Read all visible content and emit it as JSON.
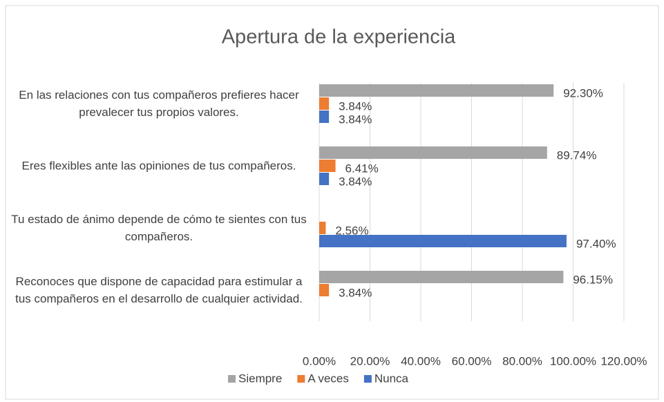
{
  "chart_data": {
    "type": "bar",
    "orientation": "horizontal",
    "title": "Apertura  de la experiencia",
    "categories": [
      "En las relaciones con tus compañeros prefieres hacer prevalecer tus propios valores.",
      "Eres flexibles ante las opiniones de tus compañeros.",
      "Tu estado de ánimo depende de cómo te sientes con tus compañeros.",
      "Reconoces que dispone de capacidad para estimular a tus compañeros en el desarrollo de cualquier actividad."
    ],
    "series": [
      {
        "name": "Siempre",
        "color": "#a5a5a5",
        "values": [
          92.3,
          89.74,
          null,
          96.15
        ],
        "value_labels": [
          "92.30%",
          "89.74%",
          null,
          "96.15%"
        ]
      },
      {
        "name": "A veces",
        "color": "#ed7d31",
        "values": [
          3.84,
          6.41,
          2.56,
          3.84
        ],
        "value_labels": [
          "3.84%",
          "6.41%",
          "2.56%",
          "3.84%"
        ]
      },
      {
        "name": "Nunca",
        "color": "#4472c4",
        "values": [
          3.84,
          3.84,
          97.4,
          null
        ],
        "value_labels": [
          "3.84%",
          "3.84%",
          "97.40%",
          null
        ]
      }
    ],
    "xlim": [
      0,
      120
    ],
    "xticks": [
      {
        "value": 0,
        "label": "0.00%"
      },
      {
        "value": 20,
        "label": "20.00%"
      },
      {
        "value": 40,
        "label": "40.00%"
      },
      {
        "value": 60,
        "label": "60.00%"
      },
      {
        "value": 80,
        "label": "80.00%"
      },
      {
        "value": 100,
        "label": "100.00%"
      },
      {
        "value": 120,
        "label": "120.00%"
      }
    ],
    "grid": true,
    "legend": "bottom"
  }
}
